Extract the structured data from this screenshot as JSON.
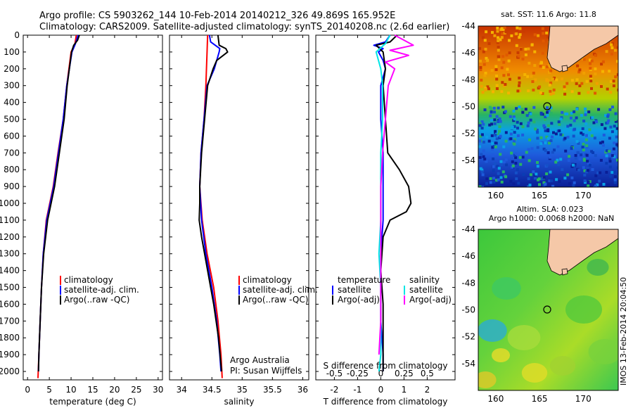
{
  "header": {
    "line1": "Argo profile: CS 5903262_144 10-Feb-2014 20140212_326 49.869S 165.952E",
    "line2": "Climatology: CARS2009. Satellite-adjusted climatology: synTS_20140208.nc (2.6d earlier)"
  },
  "map_captions": {
    "sst": "sat. SST: 11.6 Argo: 11.8",
    "sla1": "Altim. SLA: 0.023",
    "sla2": "Argo h1000: 0.0068 h2000: NaN"
  },
  "credit": "IMOS 13-Feb-2014 20:04:50",
  "footer": {
    "org": "Argo Australia",
    "pi": "PI: Susan Wijffels"
  },
  "colors": {
    "climatology": "#ff0000",
    "satellite": "#0000ff",
    "argo": "#000000",
    "sat_cyan": "#00e5e5",
    "argo_magenta": "#ff00ff"
  },
  "chart_data": [
    {
      "type": "line",
      "id": "temperature",
      "xlabel": "temperature (deg C)",
      "xlim": [
        -1,
        31
      ],
      "xticks": [
        0,
        5,
        10,
        15,
        20,
        25,
        30
      ],
      "ylim": [
        0,
        2050
      ],
      "yticks": [
        0,
        100,
        200,
        300,
        400,
        500,
        600,
        700,
        800,
        900,
        1000,
        1100,
        1200,
        1300,
        1400,
        1500,
        1600,
        1700,
        1800,
        1900,
        2000
      ],
      "legend": [
        "climatology",
        "satellite-adj. clim.",
        "Argo(..raw -QC)"
      ],
      "series": [
        {
          "name": "climatology",
          "pressure": [
            0,
            50,
            100,
            200,
            300,
            500,
            700,
            900,
            1100,
            1300,
            1500,
            1700,
            1900,
            2040
          ],
          "values": [
            11.2,
            10.9,
            10.0,
            9.5,
            9.0,
            8.2,
            7.0,
            5.9,
            4.3,
            3.6,
            3.2,
            2.9,
            2.6,
            2.4
          ]
        },
        {
          "name": "satellite-adj. clim.",
          "pressure": [
            0,
            50,
            100,
            200,
            300,
            500,
            700,
            900,
            1100,
            1300,
            1500,
            1700,
            1900,
            2000
          ],
          "values": [
            11.6,
            11.0,
            10.2,
            9.6,
            9.0,
            8.2,
            7.1,
            6.0,
            4.4,
            3.6,
            3.2,
            2.9,
            2.6,
            2.5
          ]
        },
        {
          "name": "Argo(..raw -QC)",
          "pressure": [
            0,
            30,
            60,
            100,
            200,
            300,
            500,
            700,
            900,
            1100,
            1300,
            1500,
            1700,
            1900,
            2000
          ],
          "values": [
            11.9,
            11.5,
            10.6,
            10.1,
            9.6,
            9.1,
            8.4,
            7.3,
            6.2,
            4.6,
            3.7,
            3.2,
            2.9,
            2.6,
            2.5
          ]
        }
      ]
    },
    {
      "type": "line",
      "id": "salinity",
      "xlabel": "salinity",
      "xlim": [
        33.8,
        36.1
      ],
      "xticks": [
        34,
        34.5,
        35,
        35.5,
        36
      ],
      "ylim": [
        0,
        2050
      ],
      "legend": [
        "climatology",
        "satellite-adj. clim.",
        "Argo(..raw -QC)"
      ],
      "series": [
        {
          "name": "climatology",
          "pressure": [
            0,
            100,
            300,
            500,
            700,
            900,
            1100,
            1300,
            1500,
            1700,
            1900,
            2040
          ],
          "values": [
            34.43,
            34.42,
            34.4,
            34.37,
            34.32,
            34.3,
            34.34,
            34.42,
            34.53,
            34.6,
            34.65,
            34.67
          ]
        },
        {
          "name": "satellite-adj. clim.",
          "pressure": [
            0,
            40,
            80,
            100,
            200,
            300,
            500,
            700,
            900,
            1100,
            1300,
            1500,
            1700,
            1900,
            2000
          ],
          "values": [
            34.46,
            34.48,
            34.63,
            34.62,
            34.54,
            34.42,
            34.37,
            34.32,
            34.3,
            34.33,
            34.4,
            34.5,
            34.58,
            34.63,
            34.65
          ]
        },
        {
          "name": "Argo(..raw -QC)",
          "pressure": [
            0,
            60,
            80,
            100,
            150,
            200,
            300,
            500,
            700,
            900,
            1000,
            1100,
            1200,
            1400,
            1600,
            1800,
            2000
          ],
          "values": [
            34.6,
            34.62,
            34.73,
            34.76,
            34.58,
            34.52,
            34.43,
            34.38,
            34.33,
            34.3,
            34.3,
            34.29,
            34.33,
            34.43,
            34.53,
            34.61,
            34.66
          ]
        }
      ]
    },
    {
      "type": "line",
      "id": "difference",
      "xlabel": "T difference from climatology",
      "xlabel_top": "S difference from climatology",
      "xlim": [
        -2.8,
        3.2
      ],
      "xticks": [
        -2,
        -1,
        0,
        1,
        2
      ],
      "xticks_top": [
        -0.5,
        -0.25,
        0,
        0.25,
        0.5
      ],
      "ylim": [
        0,
        2050
      ],
      "legend": {
        "temperature_title": "temperature",
        "salinity_title": "salinity",
        "entries": [
          "satellite",
          "Argo(-adj)",
          "satellite",
          "Argo(-adj)"
        ]
      },
      "series": [
        {
          "name": "temperature satellite",
          "pressure": [
            0,
            40,
            60,
            80,
            100,
            150,
            200,
            300,
            500,
            700,
            900,
            1100,
            1300,
            1500,
            1700,
            1900,
            2000
          ],
          "values": [
            0.4,
            0.2,
            -0.3,
            0.1,
            -0.1,
            0.1,
            0.2,
            0.0,
            0.0,
            0.1,
            0.1,
            0.1,
            0.0,
            0.0,
            0.0,
            0.1,
            0.1
          ]
        },
        {
          "name": "temperature Argo(-adj)",
          "pressure": [
            0,
            40,
            60,
            100,
            200,
            300,
            500,
            700,
            800,
            900,
            1000,
            1050,
            1100,
            1200,
            1400,
            1600,
            1800,
            2000
          ],
          "values": [
            0.7,
            0.4,
            -0.2,
            0.1,
            0.2,
            0.1,
            0.2,
            0.3,
            0.8,
            1.2,
            1.3,
            1.1,
            0.4,
            0.1,
            0.0,
            0.1,
            0.1,
            0.1
          ]
        },
        {
          "name": "salinity satellite",
          "pressure": [
            0,
            50,
            100,
            200,
            300,
            500,
            700,
            900,
            1100,
            1300,
            1500,
            1700,
            1900,
            2000
          ],
          "values": [
            0.1,
            0.05,
            -0.05,
            0.0,
            0.02,
            0.02,
            0.0,
            0.0,
            0.0,
            -0.02,
            0.0,
            0.0,
            0.0,
            -0.02
          ]
        },
        {
          "name": "salinity Argo(-adj)",
          "pressure": [
            0,
            60,
            90,
            120,
            160,
            200,
            300,
            500,
            700,
            900,
            1100,
            1300,
            1500,
            1700,
            1900
          ],
          "values": [
            0.15,
            0.35,
            0.1,
            0.3,
            0.05,
            0.15,
            0.08,
            0.05,
            0.02,
            0.0,
            0.0,
            0.0,
            0.0,
            0.0,
            -0.02
          ]
        }
      ]
    },
    {
      "type": "heatmap",
      "id": "sst_map",
      "title": "sat. SST: 11.6 Argo: 11.8",
      "xticks": [
        160,
        165,
        170
      ],
      "yticks": [
        -44,
        -46,
        -48,
        -50,
        -52,
        -54
      ],
      "xlim": [
        158,
        174
      ],
      "ylim": [
        -56,
        -44
      ],
      "float_position": [
        165.952,
        -49.869
      ]
    },
    {
      "type": "heatmap",
      "id": "sla_map",
      "title": "Altim. SLA: 0.023",
      "subtitle": "Argo h1000: 0.0068 h2000: NaN",
      "xticks": [
        160,
        165,
        170
      ],
      "yticks": [
        -44,
        -46,
        -48,
        -50,
        -52,
        -54
      ],
      "xlim": [
        158,
        174
      ],
      "ylim": [
        -56,
        -44
      ],
      "float_position": [
        165.952,
        -49.869
      ]
    }
  ]
}
